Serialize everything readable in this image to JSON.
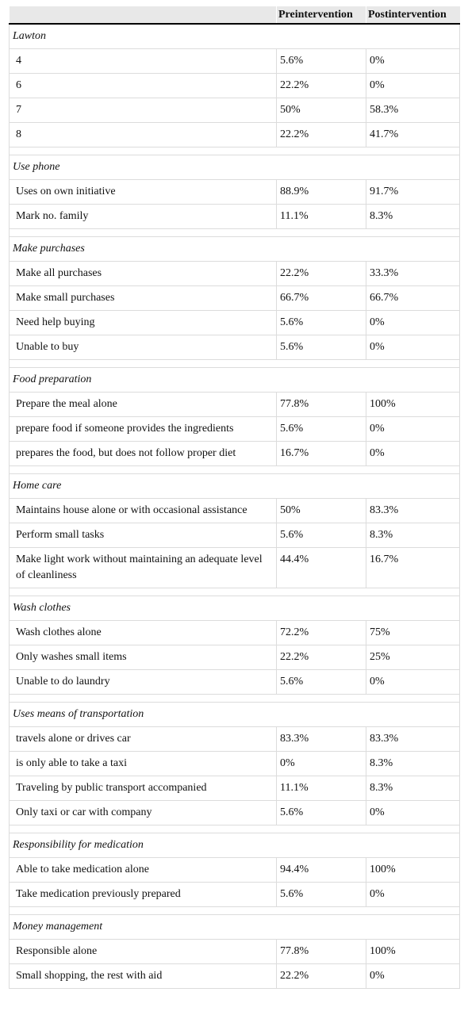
{
  "columns": [
    "",
    "Preintervention",
    "Postintervention"
  ],
  "sections": [
    {
      "title": "Lawton",
      "rows": [
        [
          "4",
          "5.6%",
          "0%"
        ],
        [
          "6",
          "22.2%",
          "0%"
        ],
        [
          "7",
          "50%",
          "58.3%"
        ],
        [
          "8",
          "22.2%",
          "41.7%"
        ]
      ]
    },
    {
      "title": "Use phone",
      "rows": [
        [
          "Uses on own initiative",
          "88.9%",
          "91.7%"
        ],
        [
          "Mark no. family",
          "11.1%",
          "8.3%"
        ]
      ]
    },
    {
      "title": "Make purchases",
      "rows": [
        [
          "Make all purchases",
          "22.2%",
          "33.3%"
        ],
        [
          "Make small purchases",
          "66.7%",
          "66.7%"
        ],
        [
          "Need help buying",
          "5.6%",
          "0%"
        ],
        [
          "Unable to buy",
          "5.6%",
          "0%"
        ]
      ]
    },
    {
      "title": "Food preparation",
      "rows": [
        [
          "Prepare the meal alone",
          "77.8%",
          "100%"
        ],
        [
          "prepare food if someone provides the ingredients",
          "5.6%",
          "0%"
        ],
        [
          "prepares the food, but does not follow proper diet",
          "16.7%",
          "0%"
        ]
      ]
    },
    {
      "title": "Home care",
      "rows": [
        [
          "Maintains house alone or with occasional assistance",
          "50%",
          "83.3%"
        ],
        [
          "Perform small tasks",
          "5.6%",
          "8.3%"
        ],
        [
          "Make light work without maintaining an adequate level of cleanliness",
          "44.4%",
          "16.7%"
        ]
      ]
    },
    {
      "title": "Wash clothes",
      "rows": [
        [
          "Wash clothes alone",
          "72.2%",
          "75%"
        ],
        [
          "Only washes small items",
          "22.2%",
          "25%"
        ],
        [
          "Unable to do laundry",
          "5.6%",
          "0%"
        ]
      ]
    },
    {
      "title": "Uses means of transportation",
      "rows": [
        [
          "travels alone or drives car",
          "83.3%",
          "83.3%"
        ],
        [
          "is only able to take a taxi",
          "0%",
          "8.3%"
        ],
        [
          "Traveling by public transport accompanied",
          "11.1%",
          "8.3%"
        ],
        [
          "Only taxi or car with company",
          "5.6%",
          "0%"
        ]
      ]
    },
    {
      "title": "Responsibility for medication",
      "rows": [
        [
          "Able to take medication alone",
          "94.4%",
          "100%"
        ],
        [
          "Take medication previously prepared",
          "5.6%",
          "0%"
        ]
      ]
    },
    {
      "title": "Money management",
      "rows": [
        [
          "Responsible alone",
          "77.8%",
          "100%"
        ],
        [
          "Small shopping, the rest with aid",
          "22.2%",
          "0%"
        ]
      ]
    }
  ]
}
